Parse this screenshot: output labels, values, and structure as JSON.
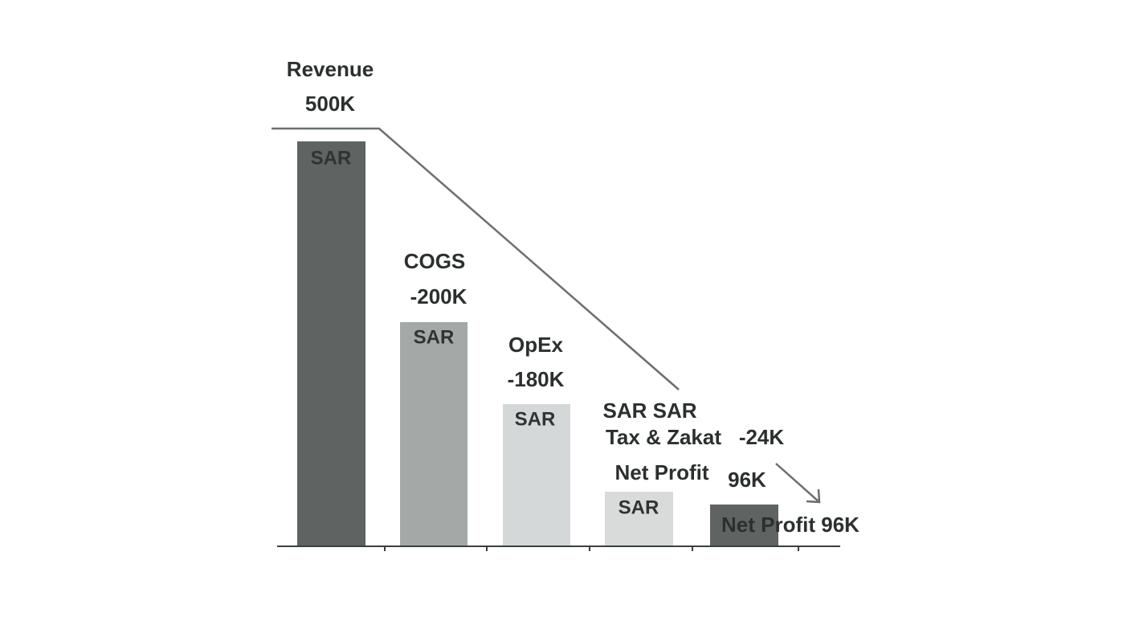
{
  "labels": {
    "revenue": {
      "name": "Revenue",
      "amount": "500K",
      "unit": "SAR"
    },
    "cogs": {
      "name": "COGS",
      "amount": "-200K",
      "unit": "SAR"
    },
    "opex": {
      "name": "OpEx",
      "amount": "-180K",
      "unit": "SAR"
    },
    "tax": {
      "units": "SAR SAR",
      "name": "Tax & Zakat",
      "amount": "-24K"
    },
    "net": {
      "name": "Net Profit",
      "amount": "96K",
      "unit": "SAR",
      "summary": "Net Profit 96K"
    }
  }
}
